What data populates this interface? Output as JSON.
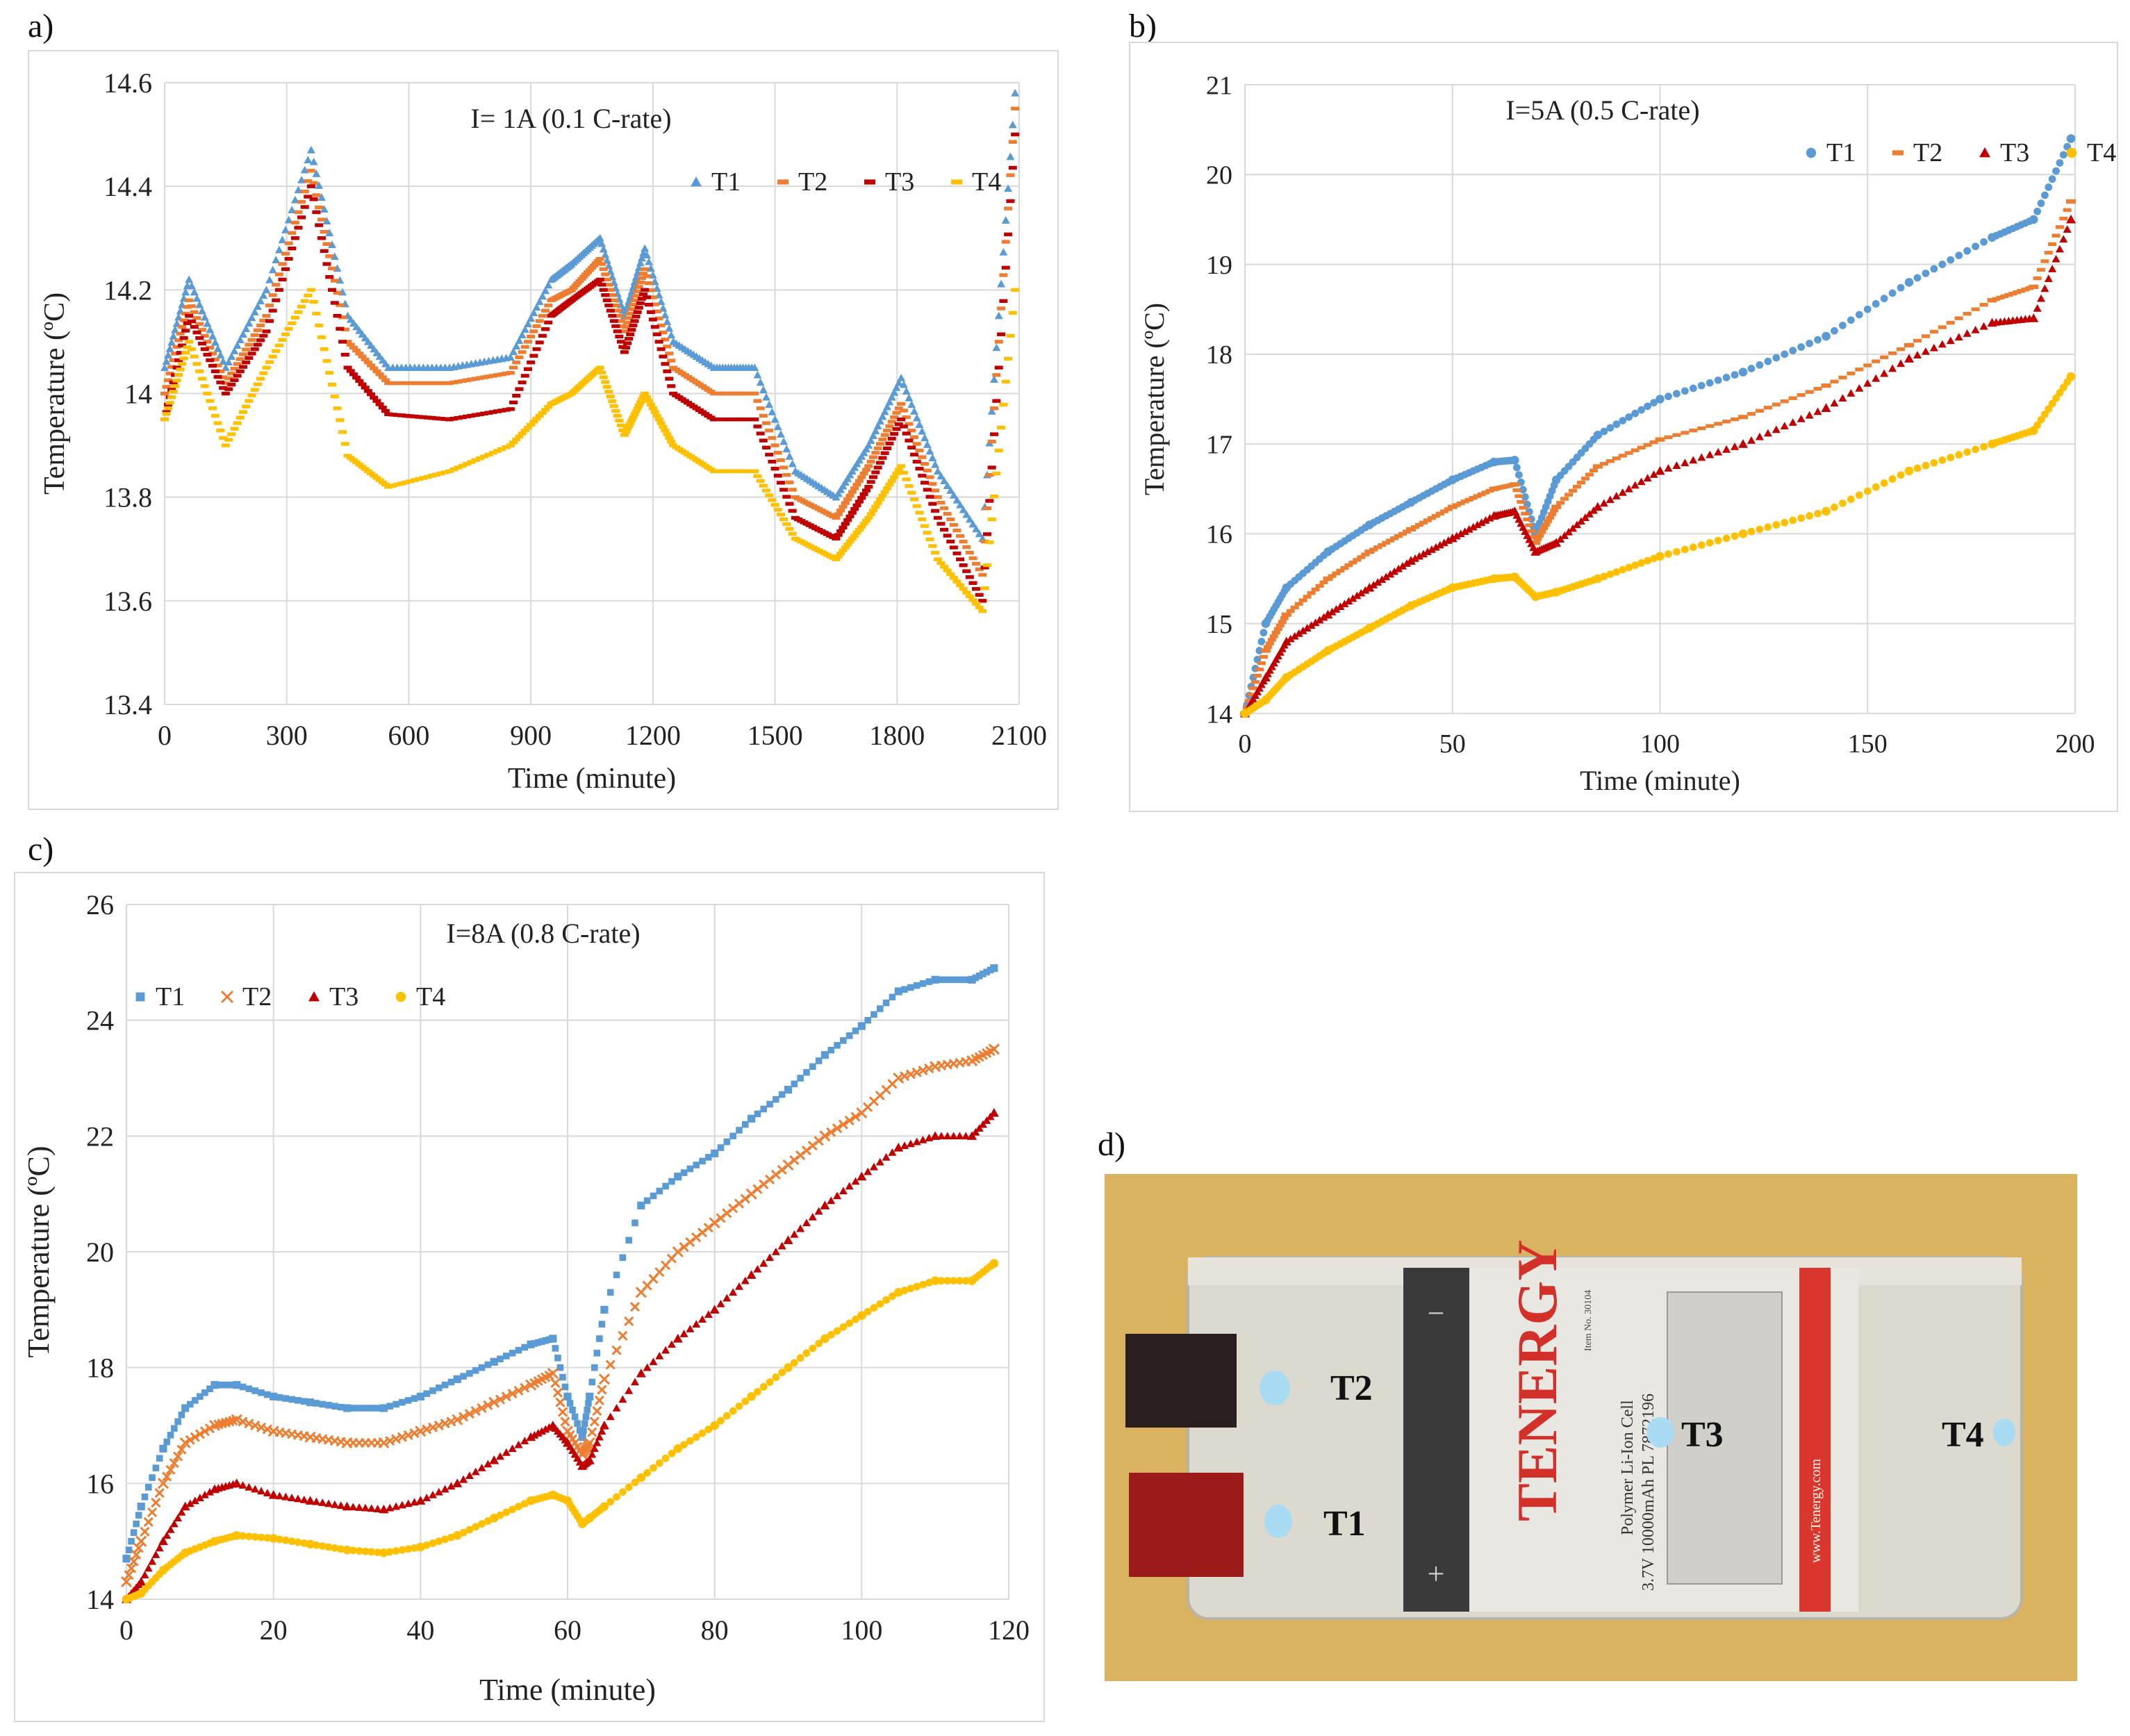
{
  "panel_labels": {
    "a": "a)",
    "b": "b)",
    "c": "c)",
    "d": "d)"
  },
  "colors": {
    "T1": "#5b9bd5",
    "T2": "#ed7d31",
    "T3": "#c00000",
    "T4": "#ffc000",
    "grid": "#d9d9d9"
  },
  "chart_data": [
    {
      "id": "a",
      "type": "scatter",
      "title": "I= 1A (0.1 C-rate)",
      "xlabel": "Time (minute)",
      "ylabel": "Temperature (ºC)",
      "xlim": [
        0,
        2100
      ],
      "ylim": [
        13.4,
        14.6
      ],
      "xticks": [
        "0",
        "300",
        "600",
        "900",
        "1200",
        "1500",
        "1800",
        "2100"
      ],
      "yticks": [
        "13.4",
        "13.6",
        "13.8",
        "14",
        "14.2",
        "14.4",
        "14.6"
      ],
      "legend": [
        "T1",
        "T2",
        "T3",
        "T4"
      ],
      "legend_position": "top-right",
      "series": [
        {
          "name": "T1",
          "marker": "triangle",
          "x": [
            0,
            60,
            150,
            250,
            360,
            450,
            550,
            700,
            850,
            950,
            1000,
            1070,
            1130,
            1180,
            1250,
            1350,
            1450,
            1550,
            1650,
            1730,
            1810,
            1900,
            2010,
            2090
          ],
          "y": [
            14.05,
            14.22,
            14.05,
            14.2,
            14.47,
            14.15,
            14.05,
            14.05,
            14.07,
            14.22,
            14.25,
            14.3,
            14.15,
            14.28,
            14.1,
            14.05,
            14.05,
            13.85,
            13.8,
            13.9,
            14.03,
            13.85,
            13.72,
            14.58
          ]
        },
        {
          "name": "T2",
          "marker": "dash",
          "x": [
            0,
            60,
            150,
            250,
            360,
            450,
            550,
            700,
            850,
            950,
            1000,
            1070,
            1130,
            1180,
            1250,
            1350,
            1450,
            1550,
            1650,
            1730,
            1810,
            1900,
            2010,
            2090
          ],
          "y": [
            14.0,
            14.18,
            14.02,
            14.15,
            14.43,
            14.1,
            14.02,
            14.02,
            14.04,
            14.18,
            14.2,
            14.26,
            14.12,
            14.24,
            14.05,
            14.0,
            14.0,
            13.8,
            13.76,
            13.86,
            13.98,
            13.8,
            13.65,
            14.55
          ]
        },
        {
          "name": "T3",
          "marker": "dash",
          "x": [
            0,
            60,
            150,
            250,
            360,
            450,
            550,
            700,
            850,
            950,
            1000,
            1070,
            1130,
            1180,
            1250,
            1350,
            1450,
            1550,
            1650,
            1730,
            1810,
            1900,
            2010,
            2090
          ],
          "y": [
            13.95,
            14.15,
            14.0,
            14.12,
            14.4,
            14.05,
            13.96,
            13.95,
            13.97,
            14.15,
            14.18,
            14.22,
            14.08,
            14.2,
            14.0,
            13.95,
            13.95,
            13.76,
            13.72,
            13.82,
            13.95,
            13.76,
            13.6,
            14.5
          ]
        },
        {
          "name": "T4",
          "marker": "dash",
          "x": [
            0,
            60,
            150,
            250,
            360,
            450,
            550,
            700,
            850,
            950,
            1000,
            1070,
            1130,
            1180,
            1250,
            1350,
            1450,
            1550,
            1650,
            1730,
            1810,
            1900,
            2010,
            2090
          ],
          "y": [
            13.95,
            14.1,
            13.9,
            14.05,
            14.2,
            13.88,
            13.82,
            13.85,
            13.9,
            13.98,
            14.0,
            14.05,
            13.92,
            14.0,
            13.9,
            13.85,
            13.85,
            13.72,
            13.68,
            13.76,
            13.86,
            13.68,
            13.58,
            14.2
          ]
        }
      ]
    },
    {
      "id": "b",
      "type": "scatter",
      "title": "I=5A (0.5 C-rate)",
      "xlabel": "Time (minute)",
      "ylabel": "Temperature (ºC)",
      "xlim": [
        0,
        200
      ],
      "ylim": [
        14,
        21
      ],
      "xticks": [
        "0",
        "50",
        "100",
        "150",
        "200"
      ],
      "yticks": [
        "14",
        "15",
        "16",
        "17",
        "18",
        "19",
        "20",
        "21"
      ],
      "legend": [
        "T1",
        "T2",
        "T3",
        "T4"
      ],
      "legend_position": "top-right",
      "series": [
        {
          "name": "T1",
          "marker": "circle",
          "x": [
            0,
            5,
            10,
            20,
            30,
            40,
            50,
            60,
            65,
            70,
            75,
            85,
            100,
            120,
            140,
            160,
            180,
            190,
            199
          ],
          "y": [
            14.0,
            15.0,
            15.4,
            15.8,
            16.1,
            16.35,
            16.6,
            16.8,
            16.82,
            16.0,
            16.6,
            17.1,
            17.5,
            17.8,
            18.2,
            18.8,
            19.3,
            19.5,
            20.4
          ]
        },
        {
          "name": "T2",
          "marker": "dash",
          "x": [
            0,
            5,
            10,
            20,
            30,
            40,
            50,
            60,
            65,
            70,
            75,
            85,
            100,
            120,
            140,
            160,
            180,
            190,
            199
          ],
          "y": [
            14.0,
            14.7,
            15.1,
            15.5,
            15.8,
            16.05,
            16.3,
            16.5,
            16.55,
            15.9,
            16.3,
            16.75,
            17.05,
            17.3,
            17.65,
            18.1,
            18.6,
            18.75,
            19.7
          ]
        },
        {
          "name": "T3",
          "marker": "triangle",
          "x": [
            0,
            5,
            10,
            20,
            30,
            40,
            50,
            60,
            65,
            70,
            75,
            85,
            100,
            120,
            140,
            160,
            180,
            190,
            199
          ],
          "y": [
            14.0,
            14.4,
            14.8,
            15.1,
            15.4,
            15.7,
            15.95,
            16.2,
            16.25,
            15.8,
            15.9,
            16.3,
            16.7,
            17.0,
            17.4,
            17.95,
            18.35,
            18.4,
            19.5
          ]
        },
        {
          "name": "T4",
          "marker": "circle",
          "x": [
            0,
            5,
            10,
            20,
            30,
            40,
            50,
            60,
            65,
            70,
            75,
            85,
            100,
            120,
            140,
            160,
            180,
            190,
            199
          ],
          "y": [
            14.0,
            14.15,
            14.4,
            14.7,
            14.95,
            15.2,
            15.4,
            15.5,
            15.52,
            15.3,
            15.35,
            15.5,
            15.75,
            16.0,
            16.25,
            16.7,
            17.0,
            17.15,
            17.75
          ]
        }
      ]
    },
    {
      "id": "c",
      "type": "scatter",
      "title": "I=8A (0.8 C-rate)",
      "xlabel": "Time (minute)",
      "ylabel": "Temperature (ºC)",
      "xlim": [
        0,
        120
      ],
      "ylim": [
        14,
        26
      ],
      "xticks": [
        "0",
        "20",
        "40",
        "60",
        "80",
        "100",
        "120"
      ],
      "yticks": [
        "14",
        "16",
        "18",
        "20",
        "22",
        "24",
        "26"
      ],
      "legend": [
        "T1",
        "T2",
        "T3",
        "T4"
      ],
      "legend_position": "top-left",
      "series": [
        {
          "name": "T1",
          "marker": "square",
          "x": [
            0,
            2,
            5,
            8,
            12,
            15,
            20,
            25,
            30,
            35,
            40,
            45,
            50,
            55,
            58,
            60,
            62,
            63,
            65,
            70,
            75,
            80,
            85,
            90,
            95,
            100,
            105,
            110,
            115,
            118
          ],
          "y": [
            14.7,
            15.6,
            16.6,
            17.3,
            17.7,
            17.7,
            17.5,
            17.4,
            17.3,
            17.3,
            17.5,
            17.8,
            18.1,
            18.4,
            18.5,
            17.5,
            16.8,
            17.5,
            19.0,
            20.8,
            21.3,
            21.7,
            22.3,
            22.8,
            23.4,
            23.9,
            24.5,
            24.7,
            24.7,
            24.9
          ]
        },
        {
          "name": "T2",
          "marker": "x",
          "x": [
            0,
            2,
            5,
            8,
            12,
            15,
            20,
            25,
            30,
            35,
            40,
            45,
            50,
            55,
            58,
            60,
            62,
            63,
            65,
            70,
            75,
            80,
            85,
            90,
            95,
            100,
            105,
            110,
            115,
            118
          ],
          "y": [
            14.3,
            15.0,
            16.0,
            16.7,
            17.0,
            17.1,
            16.9,
            16.8,
            16.7,
            16.7,
            16.9,
            17.1,
            17.4,
            17.7,
            17.9,
            16.9,
            16.5,
            16.7,
            17.8,
            19.3,
            20.0,
            20.5,
            21.0,
            21.5,
            22.0,
            22.4,
            23.0,
            23.2,
            23.3,
            23.5
          ]
        },
        {
          "name": "T3",
          "marker": "triangle",
          "x": [
            0,
            2,
            5,
            8,
            12,
            15,
            20,
            25,
            30,
            35,
            40,
            45,
            50,
            55,
            58,
            60,
            62,
            63,
            65,
            70,
            75,
            80,
            85,
            90,
            95,
            100,
            105,
            110,
            115,
            118
          ],
          "y": [
            14.0,
            14.3,
            15.0,
            15.6,
            15.9,
            16.0,
            15.8,
            15.7,
            15.6,
            15.55,
            15.7,
            16.0,
            16.4,
            16.8,
            17.0,
            16.7,
            16.3,
            16.4,
            17.0,
            17.9,
            18.5,
            19.0,
            19.6,
            20.2,
            20.8,
            21.3,
            21.8,
            22.0,
            22.0,
            22.4
          ]
        },
        {
          "name": "T4",
          "marker": "circle",
          "x": [
            0,
            2,
            5,
            8,
            12,
            15,
            20,
            25,
            30,
            35,
            40,
            45,
            50,
            55,
            58,
            60,
            62,
            63,
            65,
            70,
            75,
            80,
            85,
            90,
            95,
            100,
            105,
            110,
            115,
            118
          ],
          "y": [
            14.0,
            14.1,
            14.5,
            14.8,
            15.0,
            15.1,
            15.05,
            14.95,
            14.85,
            14.8,
            14.9,
            15.1,
            15.4,
            15.7,
            15.8,
            15.7,
            15.3,
            15.4,
            15.6,
            16.1,
            16.6,
            17.0,
            17.5,
            18.0,
            18.5,
            18.9,
            19.3,
            19.5,
            19.5,
            19.8
          ]
        }
      ]
    }
  ],
  "photo": {
    "sensor_labels": [
      "T2",
      "T1",
      "T3",
      "T4"
    ],
    "brand": "TENERGY",
    "cell_text_1": "Polymer Li-Ion Cell",
    "cell_text_2": "3.7V 10000mAh PL 7872196",
    "item_no": "Item No. 30104",
    "minus_sign": "−",
    "plus_sign": "+",
    "website": "www.Tenergy.com"
  }
}
